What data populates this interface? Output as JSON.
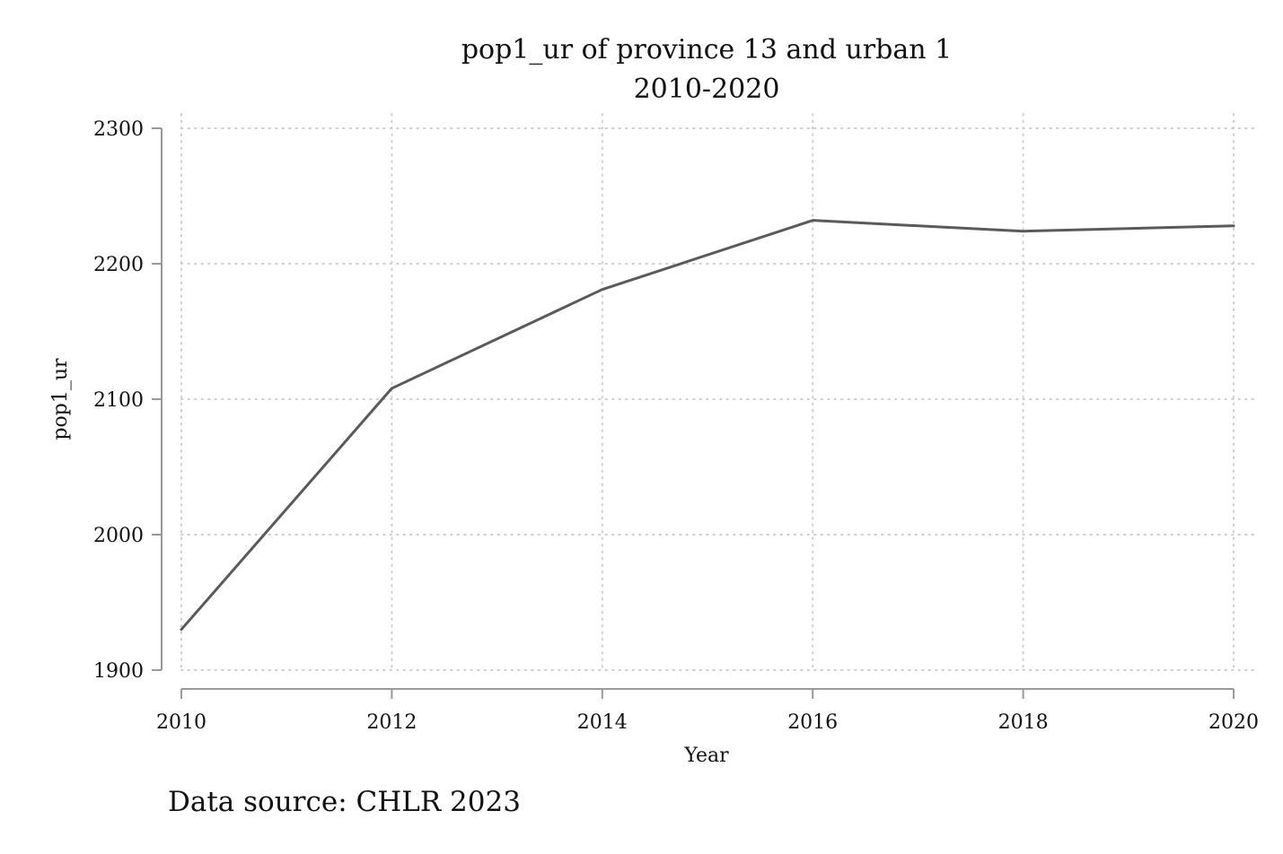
{
  "chart_data": {
    "type": "line",
    "title": "pop1_ur of province 13 and urban 1",
    "subtitle": "2010-2020",
    "xlabel": "Year",
    "ylabel": "pop1_ur",
    "note": "Data source: CHLR 2023",
    "x": [
      2010,
      2012,
      2014,
      2016,
      2018,
      2020
    ],
    "x_tick_labels": [
      "2010",
      "2012",
      "2014",
      "2016",
      "2018",
      "2020"
    ],
    "y_tick_values": [
      1900,
      2000,
      2100,
      2200,
      2300
    ],
    "y_tick_labels": [
      "1900",
      "2000",
      "2100",
      "2200",
      "2300"
    ],
    "xlim": [
      2010,
      2020
    ],
    "ylim": [
      1900,
      2300
    ],
    "grid": true,
    "series": [
      {
        "values": [
          1930,
          2108,
          2181,
          2232,
          2224,
          2228
        ]
      }
    ],
    "colors": {
      "line": "#5a5a5a",
      "axis": "#999999",
      "grid": "#cfcfcf",
      "text": "#111111"
    }
  }
}
